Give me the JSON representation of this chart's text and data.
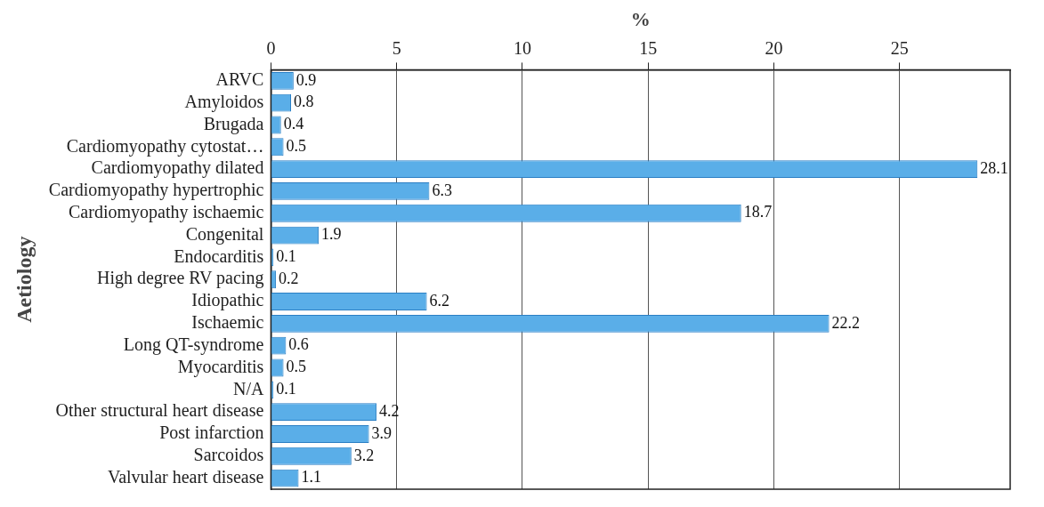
{
  "chart_data": {
    "type": "bar",
    "orientation": "horizontal",
    "xlabel": "%",
    "ylabel": "Aetiology",
    "categories": [
      "ARVC",
      "Amyloidos",
      "Brugada",
      "Cardiomyopathy cytostat…",
      "Cardiomyopathy dilated",
      "Cardiomyopathy hypertrophic",
      "Cardiomyopathy ischaemic",
      "Congenital",
      "Endocarditis",
      "High degree RV pacing",
      "Idiopathic",
      "Ischaemic",
      "Long QT-syndrome",
      "Myocarditis",
      "N/A",
      "Other structural heart disease",
      "Post infarction",
      "Sarcoidos",
      "Valvular heart disease"
    ],
    "values": [
      0.9,
      0.8,
      0.4,
      0.5,
      28.1,
      6.3,
      18.7,
      1.9,
      0.1,
      0.2,
      6.2,
      22.2,
      0.6,
      0.5,
      0.1,
      4.2,
      3.9,
      3.2,
      1.1
    ],
    "color": "#5aaee8",
    "xlim": [
      0,
      29.4
    ],
    "xticks": [
      0,
      5,
      10,
      15,
      20,
      25
    ],
    "grid": "x",
    "data_labels": true
  }
}
